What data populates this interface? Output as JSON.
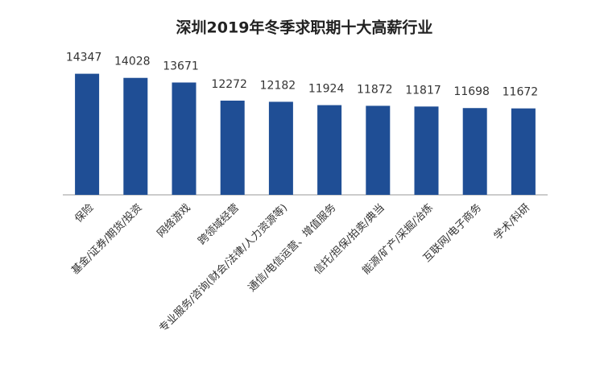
{
  "chart_data": {
    "type": "bar",
    "title": "深圳2019年冬季求职期十大高薪行业",
    "categories": [
      "保险",
      "基金/证券/期货/投资",
      "网络游戏",
      "跨领域经营",
      "专业服务/咨询(财会/法律/人力资源等)",
      "通信/电信运营、增值服务",
      "信托/担保/拍卖/典当",
      "能源/矿产/采掘/冶炼",
      "互联网/电子商务",
      "学术/科研"
    ],
    "values": [
      14347,
      14028,
      13671,
      12272,
      12182,
      11924,
      11872,
      11817,
      11698,
      11672
    ],
    "color": "#1f4e95",
    "ylim": [
      5000,
      16000
    ]
  }
}
